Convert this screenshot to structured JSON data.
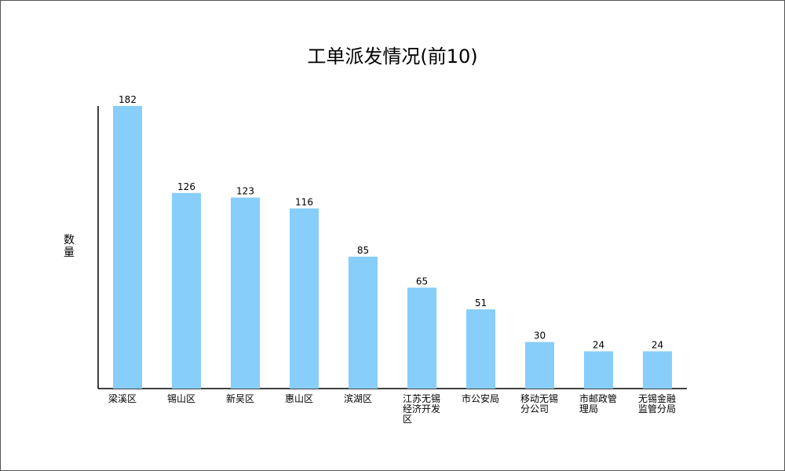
{
  "chart_data": {
    "type": "bar",
    "title": "工单派发情况(前10)",
    "xlabel": "",
    "ylabel": "数量",
    "categories": [
      "梁溪区",
      "锡山区",
      "新吴区",
      "惠山区",
      "滨湖区",
      "江苏无锡经济开发区",
      "市公安局",
      "移动无锡分公司",
      "市邮政管理局",
      "无锡金融监管分局"
    ],
    "values": [
      182,
      126,
      123,
      116,
      85,
      65,
      51,
      30,
      24,
      24
    ],
    "ylim": [
      0,
      182
    ],
    "grid": false,
    "legend": "none",
    "colors": {
      "bar": "#87cefa",
      "axis": "#000000",
      "text": "#000000"
    }
  }
}
